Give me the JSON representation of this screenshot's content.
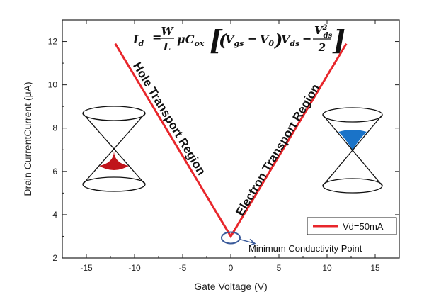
{
  "chart_data": {
    "type": "line",
    "title": "",
    "xlabel": "Gate Voltage (V)",
    "ylabel": "Drain CurrentCurrent (μA)",
    "xlim": [
      -17.5,
      17.5
    ],
    "ylim": [
      2,
      13
    ],
    "x_ticks": [
      -15,
      -10,
      -5,
      0,
      5,
      10,
      15
    ],
    "x_tick_labels": [
      "-15",
      "-10",
      "-5",
      "0",
      "5",
      "10",
      "15"
    ],
    "y_ticks": [
      2,
      4,
      6,
      8,
      10,
      12
    ],
    "y_tick_labels": [
      "2",
      "4",
      "6",
      "8",
      "10",
      "12"
    ],
    "grid": false,
    "legend_position": "bottom-right",
    "series": [
      {
        "name": "Vd=50mA",
        "color": "#e8262b",
        "x": [
          -12,
          0,
          12
        ],
        "y": [
          11.9,
          3.0,
          11.9
        ]
      }
    ],
    "annotations": {
      "hole_region": "Hole Transport Region",
      "electron_region": "Electron Transport Region",
      "min_point": "Minimum Conductivity Point",
      "min_point_x": 0,
      "min_point_y": 3.0
    },
    "equation": {
      "lhs": "I",
      "lhs_sub": "d",
      "frac1_num": "W",
      "frac1_den": "L",
      "mu": "μC",
      "mu_sub": "ox",
      "vgs": "V",
      "vgs_sub": "gs",
      "minus1": "−",
      "v0": "V",
      "v0_sub": "0",
      "vds": "V",
      "vds_sub": "ds",
      "minus2": "−",
      "frac2_num": "V",
      "frac2_num_sup": "2",
      "frac2_num_sub": "ds",
      "frac2_den": "2"
    },
    "colors": {
      "hole_fill": "#c0141b",
      "electron_fill": "#1a73c8",
      "marker_ellipse": "#3a5a9a"
    }
  }
}
